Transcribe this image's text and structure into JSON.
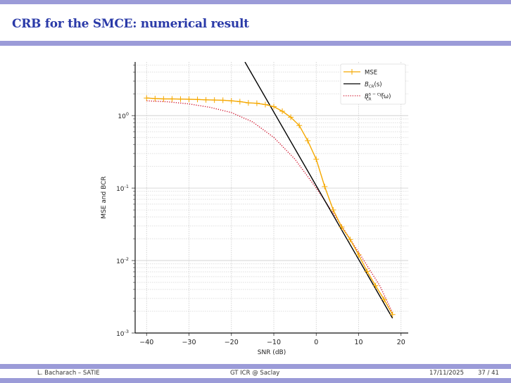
{
  "slide": {
    "title": "CRB for the SMCE: numerical result",
    "footer": {
      "author": "L. Bacharach – SATIE",
      "event": "GT ICR @ Saclay",
      "date": "17/11/2025",
      "page": "37 / 41"
    },
    "accent_color": "#9b9bd8",
    "title_color": "#2a3aa8"
  },
  "chart_data": {
    "type": "line",
    "title": "",
    "xlabel": "SNR (dB)",
    "ylabel": "MSE and BCR",
    "xlim": [
      -42.7,
      21.7
    ],
    "ylim": [
      0.001,
      5.5
    ],
    "yscale": "log",
    "grid": true,
    "legend": "top-right",
    "xticks": [
      -40,
      -30,
      -20,
      -10,
      0,
      10,
      20
    ],
    "yticks": [
      {
        "exp": "-3",
        "value": 0.001
      },
      {
        "exp": "-2",
        "value": 0.01
      },
      {
        "exp": "-1",
        "value": 0.1
      },
      {
        "exp": "0",
        "value": 1
      }
    ],
    "series": [
      {
        "name": "MSE",
        "color": "#f5a800",
        "style": "solid-plus",
        "x": [
          -40,
          -38,
          -36,
          -34,
          -32,
          -30,
          -28,
          -26,
          -24,
          -22,
          -20,
          -18,
          -16,
          -14,
          -12,
          -10,
          -8,
          -6,
          -4,
          -2,
          0,
          2,
          4,
          6,
          8,
          10,
          12,
          14,
          16,
          18
        ],
        "y": [
          1.75,
          1.72,
          1.7,
          1.7,
          1.69,
          1.68,
          1.67,
          1.65,
          1.64,
          1.63,
          1.6,
          1.56,
          1.5,
          1.48,
          1.42,
          1.33,
          1.15,
          0.95,
          0.73,
          0.45,
          0.25,
          0.105,
          0.05,
          0.029,
          0.0195,
          0.012,
          0.0071,
          0.0045,
          0.0029,
          0.0018
        ]
      },
      {
        "name": "B_CR(s)",
        "legend_main": "B",
        "legend_sub": "CR",
        "legend_tail": "(s)",
        "color": "#000000",
        "style": "solid",
        "x": [
          -16.8,
          18
        ],
        "y": [
          5.5,
          0.0016
        ]
      },
      {
        "name": "B_CR^{s-cyc}(ω)",
        "legend_main": "B",
        "legend_sub": "CR",
        "legend_sup": "s − cyc",
        "legend_tail": "(ω)",
        "color": "#d0102a",
        "style": "dotted",
        "x": [
          -40,
          -35,
          -30,
          -25,
          -20,
          -15,
          -10,
          -5,
          0,
          5,
          10,
          15,
          18
        ],
        "y": [
          1.6,
          1.55,
          1.45,
          1.3,
          1.1,
          0.82,
          0.5,
          0.25,
          0.1,
          0.037,
          0.013,
          0.0045,
          0.0019
        ]
      }
    ]
  }
}
